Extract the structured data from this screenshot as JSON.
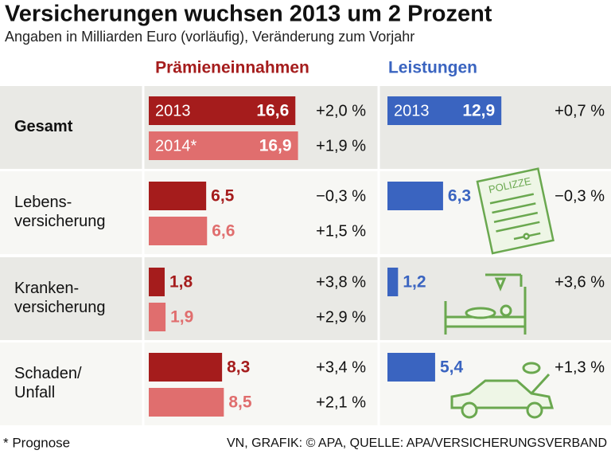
{
  "chart_data": {
    "type": "bar",
    "title": "Versicherungen wuchsen 2013 um 2 Prozent",
    "subtitle": "Angaben in Milliarden Euro (vorläufig), Veränderung zum Vorjahr",
    "categories": [
      "Gesamt",
      "Lebens-\nversicherung",
      "Kranken-\nversicherung",
      "Schaden/\nUnfall"
    ],
    "panels": [
      {
        "name": "Prämieneinnahmen",
        "color": "#a51c1c",
        "series": [
          {
            "name": "2013",
            "color": "#a51c1c",
            "values": [
              16.6,
              6.5,
              1.8,
              8.3
            ],
            "value_labels": [
              "16,6",
              "6,5",
              "1,8",
              "8,3"
            ],
            "changes": [
              "+2,0 %",
              "−0,3 %",
              "+3,8 %",
              "+3,4 %"
            ]
          },
          {
            "name": "2014*",
            "color": "#e06e6e",
            "values": [
              16.9,
              6.6,
              1.9,
              8.5
            ],
            "value_labels": [
              "16,9",
              "6,6",
              "1,9",
              "8,5"
            ],
            "changes": [
              "+1,9 %",
              "+1,5 %",
              "+2,9 %",
              "+2,1 %"
            ]
          }
        ]
      },
      {
        "name": "Leistungen",
        "color": "#3a64c0",
        "series": [
          {
            "name": "2013",
            "color": "#3a64c0",
            "values": [
              12.9,
              6.3,
              1.2,
              5.4
            ],
            "value_labels": [
              "12,9",
              "6,3",
              "1,2",
              "5,4"
            ],
            "changes": [
              "+0,7 %",
              "−0,3 %",
              "+3,6 %",
              "+1,3 %"
            ]
          }
        ]
      }
    ],
    "annotations": [
      "POLIZZE"
    ],
    "footnote": "* Prognose",
    "source": "VN, GRAFIK: © APA, QUELLE: APA/VERSICHERUNGSVERBAND"
  }
}
